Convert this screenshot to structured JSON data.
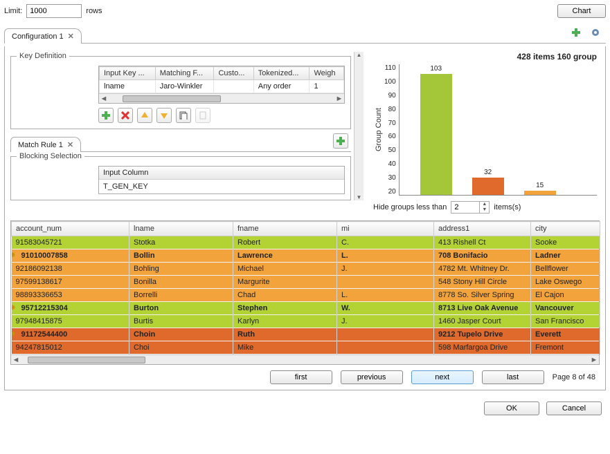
{
  "top": {
    "limit_label": "Limit:",
    "limit_value": "1000",
    "rows_label": "rows",
    "chart_button": "Chart"
  },
  "config_tab": {
    "label": "Configuration 1"
  },
  "key_definition": {
    "legend": "Key Definition",
    "columns": [
      "Input Key ...",
      "Matching F...",
      "Custo...",
      "Tokenized...",
      "Weigh"
    ],
    "row": [
      "lname",
      "Jaro-Winkler",
      "",
      "Any order",
      "1"
    ]
  },
  "match_rule_tab": {
    "label": "Match Rule 1"
  },
  "blocking": {
    "legend": "Blocking Selection",
    "header": "Input Column",
    "value": "T_GEN_KEY"
  },
  "chart": {
    "title": "428 items 160 group",
    "ylabel": "Group Count",
    "yticks": [
      "110",
      "100",
      "90",
      "80",
      "70",
      "60",
      "50",
      "40",
      "30",
      "20"
    ],
    "ymax": 110,
    "ymin": 20,
    "bars": [
      {
        "value": 103,
        "color": "#a4c639",
        "x": 30
      },
      {
        "value": 32,
        "color": "#e06a2b",
        "x": 105
      },
      {
        "value": 15,
        "color": "#f2a33c",
        "x": 180,
        "truncated": true
      }
    ]
  },
  "hide_groups": {
    "label": "Hide groups less than",
    "value": "2",
    "suffix": "items(s)"
  },
  "grid": {
    "columns": [
      "account_num",
      "lname",
      "fname",
      "mi",
      "address1",
      "city"
    ],
    "col_widths": [
      "170",
      "150",
      "150",
      "140",
      "140",
      "100"
    ],
    "rows": [
      {
        "style": "green",
        "marker": false,
        "cells": [
          "91583045721",
          "Stotka",
          "Robert",
          "C.",
          "413 Rishell Ct",
          "Sooke"
        ]
      },
      {
        "style": "orange",
        "bold": true,
        "marker": true,
        "cells": [
          "91010007858",
          "Bollin",
          "Lawrence",
          "L.",
          "708 Bonifacio",
          "Ladner"
        ]
      },
      {
        "style": "orange",
        "marker": false,
        "cells": [
          "92186092138",
          "Bohling",
          "Michael",
          "J.",
          "4782 Mt. Whitney Dr.",
          "Bellflower"
        ]
      },
      {
        "style": "orange",
        "marker": false,
        "cells": [
          "97599138617",
          "Bonilla",
          "Margurite",
          "",
          "548 Stony Hill Circle",
          "Lake Oswego"
        ]
      },
      {
        "style": "orange",
        "marker": false,
        "cells": [
          "98893336653",
          "Borrelli",
          "Chad",
          "L.",
          "8778 So. Silver Spring",
          "El Cajon"
        ]
      },
      {
        "style": "green",
        "bold": true,
        "marker": true,
        "cells": [
          "95712215304",
          "Burton",
          "Stephen",
          "W.",
          "8713 Live Oak Avenue",
          "Vancouver"
        ]
      },
      {
        "style": "green",
        "marker": false,
        "cells": [
          "97948415875",
          "Burtis",
          "Karlyn",
          "J.",
          "1460 Jasper Court",
          "San Francisco"
        ]
      },
      {
        "style": "dorange",
        "bold": true,
        "marker": true,
        "cells": [
          "91172544400",
          "Choin",
          "Ruth",
          "",
          "9212 Tupelo Drive",
          "Everett"
        ]
      },
      {
        "style": "dorange",
        "marker": false,
        "cells": [
          "94247815012",
          "Choi",
          "Mike",
          "",
          "598 Marfargoa Drive",
          "Fremont"
        ]
      }
    ]
  },
  "pager": {
    "first": "first",
    "previous": "previous",
    "next": "next",
    "last": "last",
    "status": "Page 8 of 48"
  },
  "buttons": {
    "ok": "OK",
    "cancel": "Cancel"
  }
}
